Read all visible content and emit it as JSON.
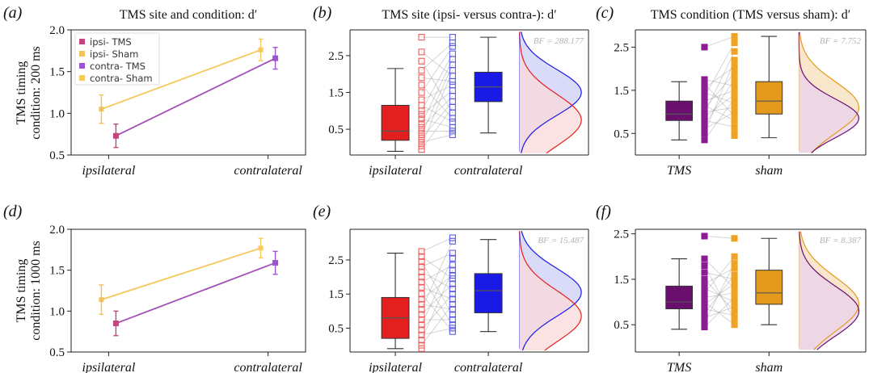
{
  "figure": {
    "ylabel_top": [
      "TMS timing",
      "condition: 200 ms"
    ],
    "ylabel_bottom": [
      "TMS timing",
      "condition: 1000 ms"
    ]
  },
  "colors": {
    "ipsi_tms": "#c2457f",
    "ipsi_sham": "#f2c15c",
    "contra_tms": "#9b55d0",
    "contra_sham": "#f8c95c",
    "line_sham": "#f6c85a",
    "line_tms": "#a550b8",
    "red_box": "#e3201f",
    "blue_box": "#1a1ae6",
    "purple_box": "#6a0f6e",
    "orange_box": "#e39a1c",
    "red_scatter": "#ef5a5a",
    "blue_scatter": "#5a5ae6",
    "purple_scatter": "#8a1d92",
    "orange_scatter": "#f0a322",
    "red_density_fill": "#fbdada",
    "blue_density_fill": "#d3d3f8",
    "purple_density_fill": "#ead2ec",
    "orange_density_fill": "#f8e3c3"
  },
  "chart_data": [
    {
      "id": "a",
      "type": "line",
      "letter": "(a)",
      "title": "TMS site and condition: d′",
      "categories": [
        "ipsilateral",
        "contralateral"
      ],
      "ylim": [
        0.5,
        2.0
      ],
      "yticks": [
        "0.5",
        "1.0",
        "1.5",
        "2.0"
      ],
      "legend": {
        "placement": "top-left",
        "entries": [
          "ipsi- TMS",
          "ipsi- Sham",
          "contra- TMS",
          "contra- Sham"
        ]
      },
      "series": [
        {
          "name": "Sham",
          "values": [
            1.05,
            1.76
          ],
          "errors": [
            0.17,
            0.13
          ]
        },
        {
          "name": "TMS",
          "values": [
            0.73,
            1.66
          ],
          "errors": [
            0.14,
            0.13
          ]
        }
      ]
    },
    {
      "id": "b",
      "type": "box",
      "letter": "(b)",
      "title": "TMS site (ipsi- versus contra-): d′",
      "categories": [
        "ipsilateral",
        "contralateral"
      ],
      "ylim": [
        -0.2,
        3.2
      ],
      "yticks": [
        "0.5",
        "1.5",
        "2.5"
      ],
      "ytick_values": [
        0.5,
        1.5,
        2.5
      ],
      "bf": "BF = 288.177",
      "boxes": [
        {
          "q1": 0.2,
          "median": 0.45,
          "q3": 1.15,
          "whisker_low": -0.1,
          "whisker_high": 2.15
        },
        {
          "q1": 1.25,
          "median": 1.65,
          "q3": 2.05,
          "whisker_low": 0.4,
          "whisker_high": 3.0
        }
      ],
      "points_left": [
        3.0,
        2.6,
        2.35,
        2.1,
        1.9,
        1.7,
        1.5,
        1.3,
        1.15,
        1.0,
        0.9,
        0.78,
        0.65,
        0.55,
        0.45,
        0.35,
        0.25,
        0.15,
        0.05,
        -0.05
      ],
      "points_right": [
        3.0,
        2.85,
        2.75,
        2.55,
        2.4,
        2.25,
        2.1,
        1.95,
        1.8,
        1.7,
        1.55,
        1.4,
        1.25,
        1.1,
        0.95,
        0.8,
        0.7,
        0.55,
        0.45,
        0.35
      ],
      "density": {
        "mean_left": 0.75,
        "sd_left": 0.7,
        "mean_right": 1.5,
        "sd_right": 0.62
      }
    },
    {
      "id": "c",
      "type": "box",
      "letter": "(c)",
      "title": "TMS condition (TMS versus sham): d′",
      "categories": [
        "TMS",
        "sham"
      ],
      "ylim": [
        0.0,
        2.9
      ],
      "yticks": [
        "0.5",
        "1.5",
        "2.5"
      ],
      "ytick_values": [
        0.5,
        1.5,
        2.5
      ],
      "bf": "BF = 7.752",
      "boxes": [
        {
          "q1": 0.8,
          "median": 0.95,
          "q3": 1.25,
          "whisker_low": 0.35,
          "whisker_high": 1.7
        },
        {
          "q1": 0.95,
          "median": 1.25,
          "q3": 1.7,
          "whisker_low": 0.4,
          "whisker_high": 2.75
        }
      ],
      "points_left": [
        2.5,
        1.75,
        1.65,
        1.55,
        1.45,
        1.35,
        1.25,
        1.15,
        1.08,
        1.0,
        0.95,
        0.88,
        0.8,
        0.7,
        0.6,
        0.5,
        0.35
      ],
      "points_right": [
        2.75,
        2.6,
        2.4,
        2.2,
        2.05,
        1.9,
        1.75,
        1.6,
        1.5,
        1.4,
        1.3,
        1.2,
        1.1,
        1.0,
        0.9,
        0.8,
        0.65,
        0.5,
        0.45
      ],
      "density": {
        "mean_left": 0.85,
        "sd_left": 0.45,
        "mean_right": 1.1,
        "sd_right": 0.6
      }
    },
    {
      "id": "d",
      "type": "line",
      "letter": "(d)",
      "title": "",
      "categories": [
        "ipsilateral",
        "contralateral"
      ],
      "ylim": [
        0.5,
        2.0
      ],
      "yticks": [
        "0.5",
        "1.0",
        "1.5",
        "2.0"
      ],
      "series": [
        {
          "name": "Sham",
          "values": [
            1.14,
            1.77
          ],
          "errors": [
            0.18,
            0.12
          ]
        },
        {
          "name": "TMS",
          "values": [
            0.85,
            1.59
          ],
          "errors": [
            0.15,
            0.14
          ]
        }
      ]
    },
    {
      "id": "e",
      "type": "box",
      "letter": "(e)",
      "title": "",
      "categories": [
        "ipsilateral",
        "contralateral"
      ],
      "ylim": [
        -0.2,
        3.4
      ],
      "yticks": [
        "0.5",
        "1.5",
        "2.5"
      ],
      "ytick_values": [
        0.5,
        1.5,
        2.5
      ],
      "bf": "BF = 15.487",
      "boxes": [
        {
          "q1": 0.2,
          "median": 0.8,
          "q3": 1.4,
          "whisker_low": -0.1,
          "whisker_high": 2.7
        },
        {
          "q1": 0.95,
          "median": 1.6,
          "q3": 2.1,
          "whisker_low": 0.4,
          "whisker_high": 3.1
        }
      ],
      "points_left": [
        2.75,
        2.6,
        2.45,
        2.3,
        2.15,
        2.0,
        1.85,
        1.7,
        1.5,
        1.35,
        1.2,
        1.05,
        0.9,
        0.75,
        0.6,
        0.45,
        0.3,
        0.15,
        0.0,
        -0.1
      ],
      "points_right": [
        3.15,
        3.05,
        2.7,
        2.55,
        2.35,
        2.2,
        2.05,
        1.95,
        1.8,
        1.65,
        1.5,
        1.35,
        1.2,
        1.05,
        0.9,
        0.75,
        0.6,
        0.5,
        0.4
      ],
      "density": {
        "mean_left": 0.85,
        "sd_left": 0.75,
        "mean_right": 1.55,
        "sd_right": 0.7
      }
    },
    {
      "id": "f",
      "type": "box",
      "letter": "(f)",
      "title": "",
      "categories": [
        "TMS",
        "sham"
      ],
      "ylim": [
        -0.1,
        2.6
      ],
      "yticks": [
        "0.5",
        "1.5",
        "2.5"
      ],
      "ytick_values": [
        0.5,
        1.5,
        2.5
      ],
      "bf": "BF = 8.387",
      "boxes": [
        {
          "q1": 0.85,
          "median": 1.0,
          "q3": 1.35,
          "whisker_low": 0.4,
          "whisker_high": 1.95
        },
        {
          "q1": 0.95,
          "median": 1.2,
          "q3": 1.7,
          "whisker_low": 0.5,
          "whisker_high": 2.4
        }
      ],
      "points_left": [
        2.45,
        1.95,
        1.8,
        1.65,
        1.5,
        1.4,
        1.3,
        1.2,
        1.1,
        1.0,
        0.95,
        0.85,
        0.75,
        0.65,
        0.55,
        0.45
      ],
      "points_right": [
        2.4,
        2.0,
        1.85,
        1.75,
        1.6,
        1.5,
        1.4,
        1.3,
        1.2,
        1.1,
        1.0,
        0.9,
        0.8,
        0.7,
        0.6,
        0.5
      ],
      "density": {
        "mean_left": 0.8,
        "sd_left": 0.55,
        "mean_right": 0.95,
        "sd_right": 0.6
      }
    }
  ]
}
